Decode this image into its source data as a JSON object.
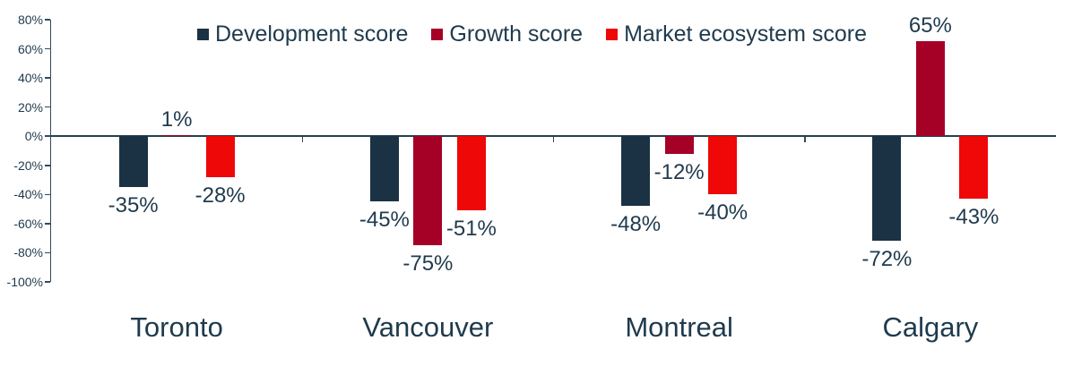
{
  "chart_data": {
    "type": "bar",
    "title": "",
    "xlabel": "",
    "ylabel": "",
    "categories": [
      "Toronto",
      "Vancouver",
      "Montreal",
      "Calgary"
    ],
    "series": [
      {
        "name": "Development score",
        "color": "#1B3244",
        "values": [
          -35,
          -45,
          -48,
          -72
        ]
      },
      {
        "name": "Growth score",
        "color": "#A50026",
        "values": [
          1,
          -75,
          -12,
          65
        ]
      },
      {
        "name": "Market ecosystem score",
        "color": "#EE0808",
        "values": [
          -28,
          -51,
          -40,
          -43
        ]
      }
    ],
    "data_labels": [
      [
        "-35%",
        "-45%",
        "-48%",
        "-72%"
      ],
      [
        "1%",
        "-75%",
        "-12%",
        "65%"
      ],
      [
        "-28%",
        "-51%",
        "-40%",
        "-43%"
      ]
    ],
    "data_label_format": "{v}%",
    "ylim": [
      -100,
      80
    ],
    "y_tick_values": [
      80,
      60,
      40,
      20,
      0,
      -20,
      -40,
      -60,
      -80,
      -100
    ],
    "y_tick_labels": [
      "80%",
      "60%",
      "40%",
      "20%",
      "0%",
      "-20%",
      "-40%",
      "-60%",
      "-80%",
      "-100%"
    ],
    "grid": false,
    "legend_position": "top"
  },
  "colors": {
    "text": "#1F3A4D",
    "axis_line": "#2F4B5C",
    "zero_line": "#24404F",
    "background": "#FFFFFF"
  }
}
